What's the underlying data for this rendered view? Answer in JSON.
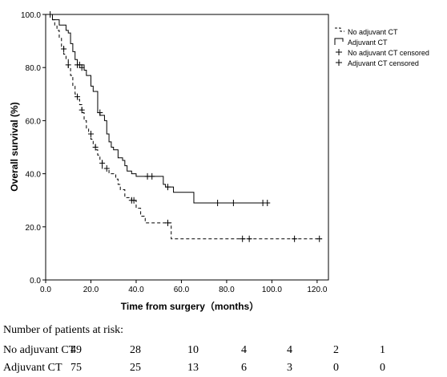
{
  "chart_data": {
    "type": "line",
    "title": "",
    "xlabel": "Time from surgery（months）",
    "ylabel": "Overall survival (%)",
    "xlim": [
      0,
      125
    ],
    "ylim": [
      0,
      100
    ],
    "xticks": [
      "0.0",
      "20.0",
      "40.0",
      "60.0",
      "80.0",
      "100.0",
      "120.0"
    ],
    "yticks": [
      "0.0",
      "20.0",
      "40.0",
      "60.0",
      "80.0",
      "100.0"
    ],
    "legend_position": "top-right",
    "legend": [
      "No adjuvant CT",
      "Adjuvant CT",
      "No adjuvant CT censored",
      "Adjuvant CT censored"
    ],
    "series": [
      {
        "name": "No adjuvant CT",
        "style": "dashed",
        "color": "#000000",
        "steps": [
          [
            0,
            100
          ],
          [
            3,
            98
          ],
          [
            4,
            96
          ],
          [
            5,
            94
          ],
          [
            6,
            91
          ],
          [
            7,
            88
          ],
          [
            8,
            85
          ],
          [
            9,
            83
          ],
          [
            10,
            80
          ],
          [
            11,
            77
          ],
          [
            12,
            73
          ],
          [
            13,
            70
          ],
          [
            14,
            68
          ],
          [
            15,
            66
          ],
          [
            16,
            63
          ],
          [
            17,
            60
          ],
          [
            18,
            57
          ],
          [
            19,
            55
          ],
          [
            20,
            53
          ],
          [
            21,
            51
          ],
          [
            22,
            49
          ],
          [
            23,
            47
          ],
          [
            24,
            45
          ],
          [
            25,
            42
          ],
          [
            28,
            40
          ],
          [
            31,
            38
          ],
          [
            32,
            36
          ],
          [
            33,
            34
          ],
          [
            35,
            31
          ],
          [
            38,
            30
          ],
          [
            40,
            27
          ],
          [
            42,
            24
          ],
          [
            44,
            21.5
          ],
          [
            55,
            21.5
          ],
          [
            55.5,
            15.5
          ],
          [
            122,
            15.5
          ]
        ],
        "censored": [
          [
            8,
            87
          ],
          [
            10,
            81
          ],
          [
            14,
            69
          ],
          [
            16,
            64
          ],
          [
            20,
            55
          ],
          [
            22,
            50
          ],
          [
            25,
            44
          ],
          [
            27,
            42
          ],
          [
            38,
            30
          ],
          [
            39,
            30
          ],
          [
            54,
            21.5
          ],
          [
            87,
            15.5
          ],
          [
            90,
            15.5
          ],
          [
            110,
            15.5
          ],
          [
            121,
            15.5
          ]
        ]
      },
      {
        "name": "Adjuvant CT",
        "style": "solid",
        "color": "#000000",
        "steps": [
          [
            0,
            100
          ],
          [
            3,
            98
          ],
          [
            6,
            96
          ],
          [
            9,
            94
          ],
          [
            10,
            93
          ],
          [
            11,
            89
          ],
          [
            12,
            86
          ],
          [
            13,
            83
          ],
          [
            14,
            81
          ],
          [
            17,
            79
          ],
          [
            18,
            77
          ],
          [
            20,
            73
          ],
          [
            21,
            71
          ],
          [
            23,
            63
          ],
          [
            24,
            62
          ],
          [
            26,
            60
          ],
          [
            27,
            55
          ],
          [
            28,
            52
          ],
          [
            29,
            50
          ],
          [
            30,
            49
          ],
          [
            32,
            46
          ],
          [
            34,
            45
          ],
          [
            35,
            43
          ],
          [
            36,
            41
          ],
          [
            38,
            40
          ],
          [
            40,
            39
          ],
          [
            52,
            36
          ],
          [
            53,
            35
          ],
          [
            56,
            35
          ],
          [
            56.5,
            33
          ],
          [
            65,
            33
          ],
          [
            65.5,
            29
          ],
          [
            99,
            29
          ]
        ],
        "censored": [
          [
            2,
            100
          ],
          [
            14,
            81
          ],
          [
            15,
            81
          ],
          [
            16,
            80
          ],
          [
            24,
            63
          ],
          [
            45,
            39
          ],
          [
            47,
            39
          ],
          [
            54,
            35
          ],
          [
            76,
            29
          ],
          [
            83,
            29
          ],
          [
            96,
            29
          ],
          [
            98,
            29
          ]
        ]
      }
    ]
  },
  "risk_table": {
    "title": "Number of patients at risk:",
    "rows": [
      {
        "label": "No adjuvant CT",
        "values": [
          "49",
          "28",
          "10",
          "4",
          "4",
          "2",
          "1"
        ]
      },
      {
        "label": "Adjuvant CT",
        "values": [
          "75",
          "25",
          "13",
          "6",
          "3",
          "0",
          "0"
        ]
      }
    ]
  }
}
